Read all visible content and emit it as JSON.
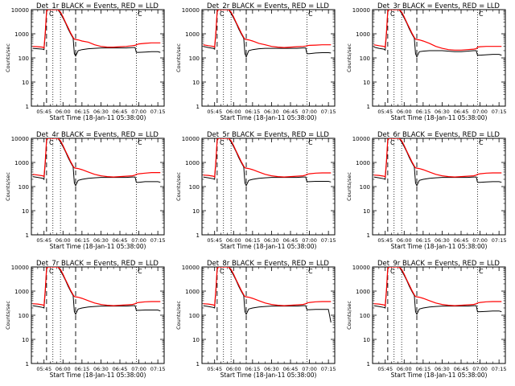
{
  "chart_data": {
    "type": "line",
    "grid": false,
    "x_tick_labels": [
      "05:45",
      "06:00",
      "06:15",
      "06:30",
      "06:45",
      "07:00",
      "07:15"
    ],
    "x_ticks_min": [
      345,
      360,
      375,
      390,
      405,
      420,
      435
    ],
    "xlim_min": [
      335,
      440
    ],
    "xlabel": "Start Time (18-Jan-11 05:38:00)",
    "ylabel": "Counts/sec",
    "yscale": "log",
    "ylim": [
      1,
      10000
    ],
    "y_tick_labels": [
      "1",
      "10",
      "100",
      "1000",
      "10000"
    ],
    "y_ticks": [
      1,
      10,
      100,
      1000,
      10000
    ],
    "series_legend": [
      "BLACK = Events",
      "RED = LLD"
    ],
    "series_colors": {
      "events": "#000000",
      "lld": "#ff0000"
    },
    "dashed_lines_min": [
      347,
      370
    ],
    "dotted_lines_min": [
      352,
      358,
      418
    ],
    "corner_marks": [
      "C",
      "C"
    ],
    "x_min": [
      336,
      340,
      344,
      345,
      346,
      347,
      348,
      349,
      350,
      352,
      354,
      356,
      358,
      360,
      362,
      364,
      366,
      368,
      369,
      370,
      372,
      375,
      380,
      385,
      390,
      395,
      400,
      405,
      410,
      415,
      417,
      418,
      420,
      425,
      430,
      435,
      437
    ],
    "panels": [
      {
        "title": "Det_1r BLACK = Events, RED = LLD",
        "lld": [
          300,
          290,
          280,
          260,
          1200,
          9000,
          12000,
          14000,
          14000,
          14000,
          13000,
          11000,
          8000,
          5000,
          3000,
          1800,
          1100,
          700,
          600,
          580,
          560,
          500,
          450,
          350,
          300,
          280,
          280,
          290,
          300,
          320,
          330,
          350,
          380,
          400,
          420,
          420,
          420
        ],
        "events": [
          250,
          240,
          230,
          220,
          1000,
          8000,
          11000,
          13000,
          13000,
          13000,
          12000,
          10000,
          7000,
          4500,
          2800,
          1600,
          1000,
          650,
          150,
          120,
          200,
          220,
          240,
          250,
          260,
          260,
          260,
          260,
          260,
          270,
          270,
          170,
          170,
          175,
          180,
          180,
          170
        ]
      },
      {
        "title": "Det_2r BLACK = Events, RED = LLD",
        "lld": [
          350,
          320,
          300,
          280,
          1200,
          9000,
          12000,
          14000,
          14000,
          14000,
          13000,
          11000,
          8000,
          5000,
          3000,
          1800,
          1100,
          700,
          600,
          580,
          560,
          500,
          400,
          350,
          300,
          280,
          270,
          280,
          290,
          300,
          310,
          320,
          330,
          340,
          350,
          350,
          350
        ],
        "events": [
          300,
          270,
          250,
          230,
          1000,
          8000,
          11000,
          13000,
          13000,
          13000,
          12000,
          10000,
          7000,
          4500,
          2800,
          1600,
          1000,
          650,
          150,
          110,
          200,
          220,
          240,
          250,
          250,
          250,
          250,
          250,
          250,
          260,
          260,
          150,
          150,
          160,
          165,
          165,
          160
        ]
      },
      {
        "title": "Det_3r BLACK = Events, RED = LLD",
        "lld": [
          350,
          320,
          300,
          280,
          1200,
          9000,
          12000,
          14000,
          14000,
          14000,
          13000,
          11000,
          8000,
          5000,
          3000,
          1800,
          1100,
          700,
          600,
          580,
          560,
          500,
          400,
          300,
          250,
          220,
          210,
          210,
          220,
          230,
          240,
          280,
          290,
          300,
          300,
          300,
          300
        ],
        "events": [
          280,
          250,
          230,
          210,
          1000,
          8000,
          11000,
          13000,
          13000,
          13000,
          12000,
          10000,
          7000,
          4500,
          2800,
          1600,
          1000,
          650,
          150,
          110,
          180,
          190,
          200,
          200,
          200,
          190,
          180,
          180,
          190,
          200,
          200,
          130,
          130,
          135,
          140,
          140,
          130
        ]
      },
      {
        "title": "Det_4r BLACK = Events, RED = LLD",
        "lld": [
          320,
          300,
          280,
          260,
          1200,
          9000,
          12000,
          14000,
          14000,
          14000,
          13000,
          11000,
          8000,
          5000,
          3000,
          1800,
          1100,
          700,
          600,
          580,
          560,
          500,
          400,
          320,
          280,
          260,
          250,
          260,
          270,
          280,
          300,
          320,
          340,
          360,
          380,
          380,
          380
        ],
        "events": [
          260,
          240,
          220,
          200,
          1000,
          8000,
          11000,
          13000,
          13000,
          13000,
          12000,
          10000,
          7000,
          4500,
          2800,
          1600,
          1000,
          650,
          140,
          110,
          180,
          200,
          220,
          230,
          240,
          240,
          240,
          240,
          240,
          250,
          250,
          150,
          150,
          160,
          160,
          160,
          150
        ]
      },
      {
        "title": "Det_5r BLACK = Events, RED = LLD",
        "lld": [
          300,
          290,
          270,
          250,
          1200,
          9000,
          12000,
          14000,
          14000,
          14000,
          13000,
          11000,
          8000,
          5000,
          3000,
          1800,
          1100,
          700,
          600,
          580,
          560,
          500,
          400,
          320,
          280,
          260,
          250,
          260,
          270,
          280,
          300,
          320,
          340,
          360,
          370,
          370,
          370
        ],
        "events": [
          250,
          230,
          210,
          200,
          1000,
          8000,
          11000,
          13000,
          13000,
          13000,
          12000,
          10000,
          7000,
          4500,
          2800,
          1600,
          1000,
          650,
          140,
          110,
          180,
          200,
          220,
          230,
          240,
          240,
          240,
          240,
          240,
          250,
          250,
          160,
          160,
          165,
          165,
          165,
          155
        ]
      },
      {
        "title": "Det_6r BLACK = Events, RED = LLD",
        "lld": [
          300,
          290,
          270,
          250,
          1200,
          9000,
          12000,
          14000,
          14000,
          14000,
          13000,
          11000,
          8000,
          5000,
          3000,
          1800,
          1100,
          700,
          600,
          580,
          560,
          500,
          400,
          320,
          280,
          260,
          250,
          260,
          270,
          280,
          300,
          320,
          340,
          360,
          370,
          370,
          370
        ],
        "events": [
          250,
          230,
          210,
          200,
          1000,
          8000,
          11000,
          13000,
          13000,
          13000,
          12000,
          10000,
          7000,
          4500,
          2800,
          1600,
          1000,
          650,
          140,
          110,
          180,
          200,
          220,
          230,
          240,
          240,
          240,
          240,
          240,
          250,
          250,
          150,
          150,
          155,
          160,
          160,
          150
        ]
      },
      {
        "title": "Det_7r BLACK = Events, RED = LLD",
        "lld": [
          300,
          290,
          270,
          250,
          1200,
          9000,
          12000,
          14000,
          14000,
          14000,
          13000,
          11000,
          8000,
          5000,
          3000,
          1800,
          1100,
          700,
          600,
          580,
          560,
          500,
          400,
          320,
          280,
          260,
          250,
          260,
          270,
          280,
          300,
          320,
          340,
          360,
          370,
          370,
          370
        ],
        "events": [
          250,
          230,
          210,
          200,
          1000,
          8000,
          11000,
          13000,
          13000,
          13000,
          12000,
          10000,
          7000,
          4500,
          2800,
          1600,
          1000,
          650,
          140,
          110,
          180,
          200,
          220,
          230,
          240,
          240,
          240,
          240,
          240,
          250,
          250,
          160,
          160,
          165,
          165,
          165,
          150
        ]
      },
      {
        "title": "Det_8r BLACK = Events, RED = LLD",
        "lld": [
          300,
          290,
          270,
          250,
          1200,
          9000,
          12000,
          14000,
          14000,
          14000,
          13000,
          11000,
          8000,
          5000,
          3000,
          1800,
          1100,
          700,
          600,
          580,
          560,
          500,
          400,
          320,
          280,
          260,
          250,
          260,
          270,
          280,
          300,
          320,
          340,
          360,
          370,
          370,
          370
        ],
        "events": [
          250,
          230,
          210,
          200,
          1000,
          8000,
          11000,
          13000,
          13000,
          13000,
          12000,
          10000,
          7000,
          4500,
          2800,
          1600,
          1000,
          650,
          140,
          110,
          180,
          200,
          220,
          230,
          240,
          240,
          240,
          240,
          240,
          250,
          250,
          170,
          170,
          175,
          175,
          175,
          50
        ]
      },
      {
        "title": "Det_9r BLACK = Events, RED = LLD",
        "lld": [
          300,
          290,
          270,
          250,
          1200,
          9000,
          12000,
          14000,
          14000,
          14000,
          13000,
          11000,
          8000,
          5000,
          3000,
          1800,
          1100,
          700,
          600,
          580,
          560,
          500,
          400,
          320,
          280,
          260,
          250,
          260,
          270,
          280,
          300,
          320,
          340,
          360,
          370,
          370,
          370
        ],
        "events": [
          250,
          230,
          210,
          200,
          1000,
          8000,
          11000,
          13000,
          13000,
          13000,
          12000,
          10000,
          7000,
          4500,
          2800,
          1600,
          1000,
          650,
          140,
          110,
          180,
          200,
          220,
          230,
          240,
          240,
          240,
          240,
          240,
          250,
          250,
          140,
          140,
          145,
          150,
          150,
          140
        ]
      }
    ]
  }
}
